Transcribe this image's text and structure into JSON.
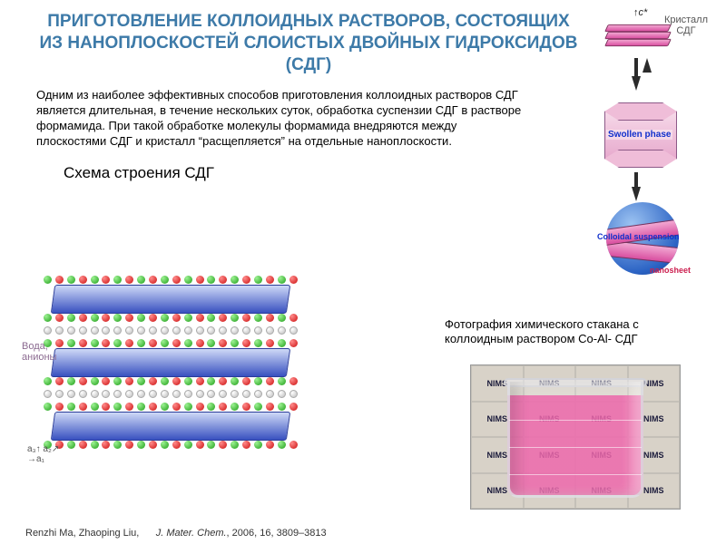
{
  "title": "ПРИГОТОВЛЕНИЕ КОЛЛОИДНЫХ РАСТВОРОВ, СОСТОЯЩИХ ИЗ НАНОПЛОСКОСТЕЙ СЛОИСТЫХ ДВОЙНЫХ ГИДРОКСИДОВ (СДГ)",
  "title_style": {
    "font_size": 19,
    "color": "#3d7aa8",
    "weight": "bold"
  },
  "body": "Одним из наиболее эффективных способов приготовления коллоидных растворов СДГ является длительная, в течение нескольких суток, обработка суспензии СДГ в растворе формамида. При такой обработке молекулы формамида внедряются между плоскостями СДГ и кристалл “расщепляется” на отдельные наноплоскости.",
  "body_style": {
    "font_size": 13,
    "color": "#000000"
  },
  "subtitle": "Схема строения СДГ",
  "subtitle_style": {
    "font_size": 17,
    "color": "#000000"
  },
  "right_diagram": {
    "crystal_label": "Кристалл\nСДГ",
    "c_axis": "c*",
    "swollen_label": "Swollen phase",
    "colloidal_label": "Colloidal suspension",
    "nanosheet_label": "nanosheet",
    "plate_color": "#d94fa0",
    "sphere_color": "#2b63c4",
    "arrow_color": "#2b2b2b"
  },
  "ldh_schema": {
    "layer_count": 3,
    "layer_color": "#3951c0",
    "atom_colors": {
      "red": "#cc1010",
      "green": "#1f9e18",
      "white": "#bcbcbc"
    },
    "water_anions_label": "Вода,\nанионы",
    "axes": {
      "a1": "a₁",
      "a2": "a₂",
      "a3": "a₃"
    }
  },
  "citation": {
    "authors": "Renzhi Ma, Zhaoping Liu,",
    "journal": "J. Mater. Chem.",
    "year_vol_pages": ", 2006, 16, 3809–3813"
  },
  "photo_caption": "Фотография химического стакана с коллоидным раствором Co-Al- СДГ",
  "photo": {
    "bg_label": "NIMS",
    "solution_color": "#ee68ac",
    "grid": 16
  }
}
